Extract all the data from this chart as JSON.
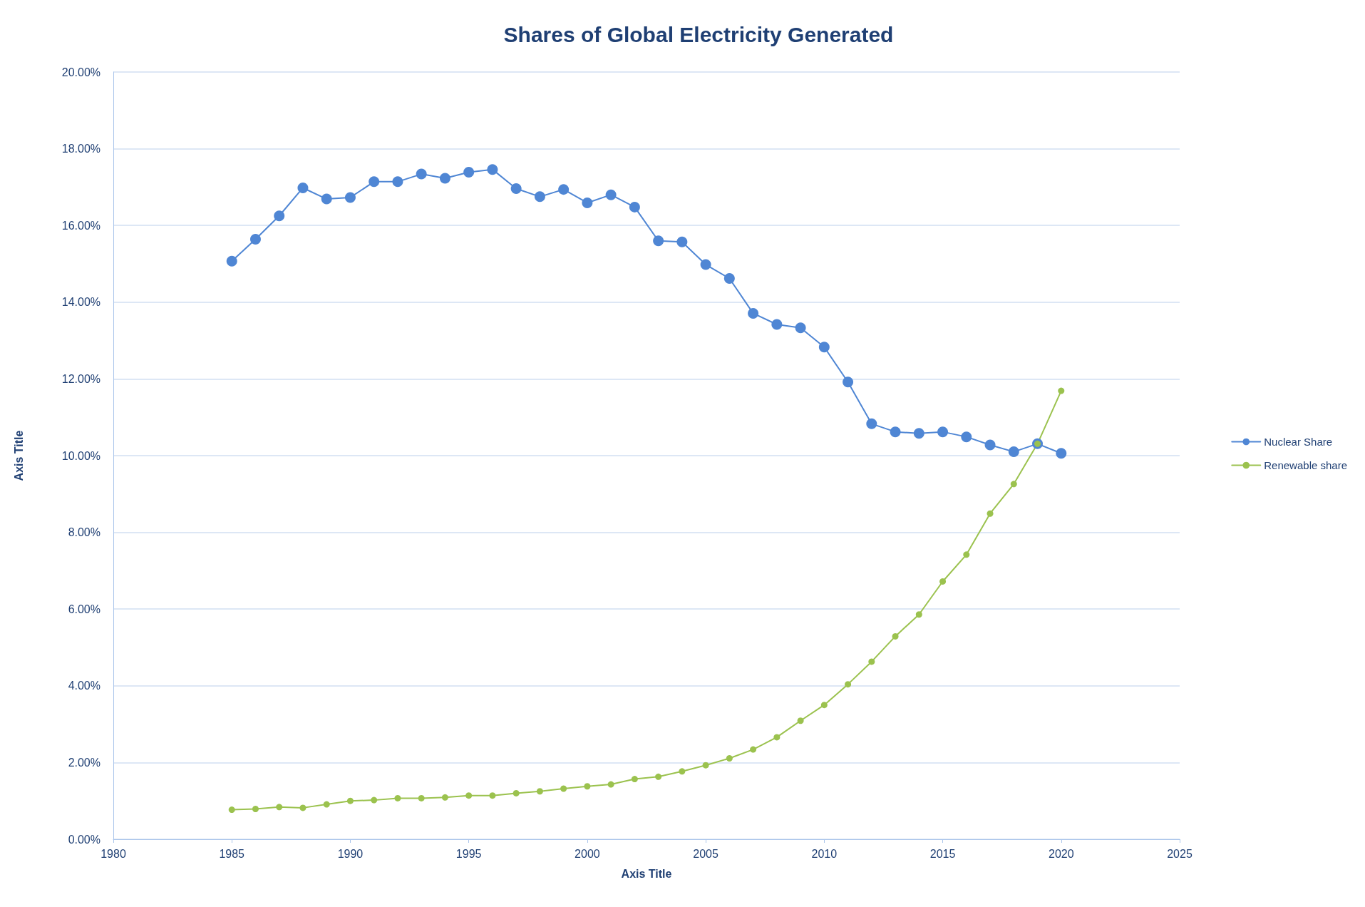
{
  "chart_data": {
    "type": "line",
    "title": "Shares of Global Electricity Generated",
    "xlabel": "Axis Title",
    "ylabel": "Axis Title",
    "x": [
      1985,
      1986,
      1987,
      1988,
      1989,
      1990,
      1991,
      1992,
      1993,
      1994,
      1995,
      1996,
      1997,
      1998,
      1999,
      2000,
      2001,
      2002,
      2003,
      2004,
      2005,
      2006,
      2007,
      2008,
      2009,
      2010,
      2011,
      2012,
      2013,
      2014,
      2015,
      2016,
      2017,
      2018,
      2019,
      2020
    ],
    "series": [
      {
        "name": "Nuclear Share",
        "color": "#4f86d4",
        "values": [
          15.07,
          15.64,
          16.25,
          16.98,
          16.69,
          16.73,
          17.14,
          17.14,
          17.34,
          17.23,
          17.39,
          17.46,
          16.96,
          16.75,
          16.94,
          16.59,
          16.8,
          16.48,
          15.6,
          15.57,
          14.98,
          14.62,
          13.71,
          13.42,
          13.33,
          12.83,
          11.92,
          10.83,
          10.62,
          10.58,
          10.62,
          10.49,
          10.28,
          10.1,
          10.31,
          10.06
        ]
      },
      {
        "name": "Renewable share",
        "color": "#9bc24e",
        "values": [
          0.77,
          0.79,
          0.84,
          0.82,
          0.91,
          1.0,
          1.02,
          1.07,
          1.07,
          1.09,
          1.14,
          1.14,
          1.2,
          1.25,
          1.32,
          1.38,
          1.43,
          1.57,
          1.63,
          1.77,
          1.93,
          2.11,
          2.34,
          2.66,
          3.09,
          3.5,
          4.04,
          4.63,
          5.29,
          5.86,
          6.72,
          7.42,
          8.49,
          9.26,
          10.31,
          11.69
        ]
      }
    ],
    "xlim": [
      1980,
      2025
    ],
    "xticks": [
      1980,
      1985,
      1990,
      1995,
      2000,
      2005,
      2010,
      2015,
      2020,
      2025
    ],
    "ylim": [
      0,
      20
    ],
    "yticks": [
      {
        "value": 0,
        "label": "0.00%"
      },
      {
        "value": 2,
        "label": "2.00%"
      },
      {
        "value": 4,
        "label": "4.00%"
      },
      {
        "value": 6,
        "label": "6.00%"
      },
      {
        "value": 8,
        "label": "8.00%"
      },
      {
        "value": 10,
        "label": "10.00%"
      },
      {
        "value": 12,
        "label": "12.00%"
      },
      {
        "value": 14,
        "label": "14.00%"
      },
      {
        "value": 16,
        "label": "16.00%"
      },
      {
        "value": 18,
        "label": "18.00%"
      },
      {
        "value": 20,
        "label": "20.00%"
      }
    ],
    "grid": "y",
    "legend": "right",
    "marker": "circle",
    "line_style": "solid"
  }
}
